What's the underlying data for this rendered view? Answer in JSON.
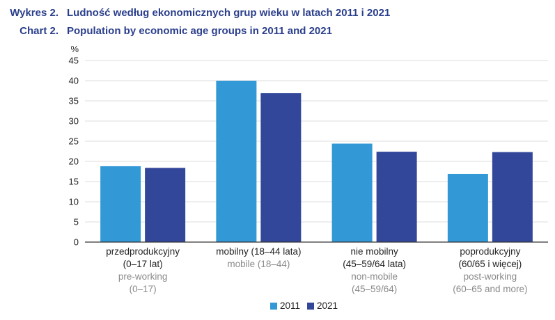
{
  "header": {
    "pl_label": "Wykres 2.",
    "pl_title": "Ludność według ekonomicznych grup wieku w latach 2011 i 2021",
    "en_label": "Chart 2.",
    "en_title": "Population by economic age groups in 2011 and 2021"
  },
  "colors": {
    "s2011": "#3399d6",
    "s2021": "#33479a",
    "grid": "#dcdcdc",
    "axis": "#333333"
  },
  "chart_data": {
    "type": "bar",
    "ylabel": "%",
    "ylim": [
      0,
      45
    ],
    "yticks": [
      0,
      5,
      10,
      15,
      20,
      25,
      30,
      35,
      40,
      45
    ],
    "grid": true,
    "legend_position": "bottom",
    "categories": [
      {
        "pl": [
          "przedprodukcyjny",
          "(0–17 lat)"
        ],
        "en": [
          "pre-working",
          "(0–17)"
        ]
      },
      {
        "pl": [
          "mobilny (18–44 lata)"
        ],
        "en": [
          "mobile (18–44)"
        ]
      },
      {
        "pl": [
          "nie mobilny",
          "(45–59/64 lata)"
        ],
        "en": [
          "non-mobile",
          "(45–59/64)"
        ]
      },
      {
        "pl": [
          "poprodukcyjny",
          "(60/65 i więcej)"
        ],
        "en": [
          "post-working",
          "(60–65 and more)"
        ]
      }
    ],
    "series": [
      {
        "name": "2011",
        "values": [
          18.8,
          40.0,
          24.4,
          16.9
        ]
      },
      {
        "name": "2021",
        "values": [
          18.4,
          36.9,
          22.4,
          22.3
        ]
      }
    ]
  }
}
